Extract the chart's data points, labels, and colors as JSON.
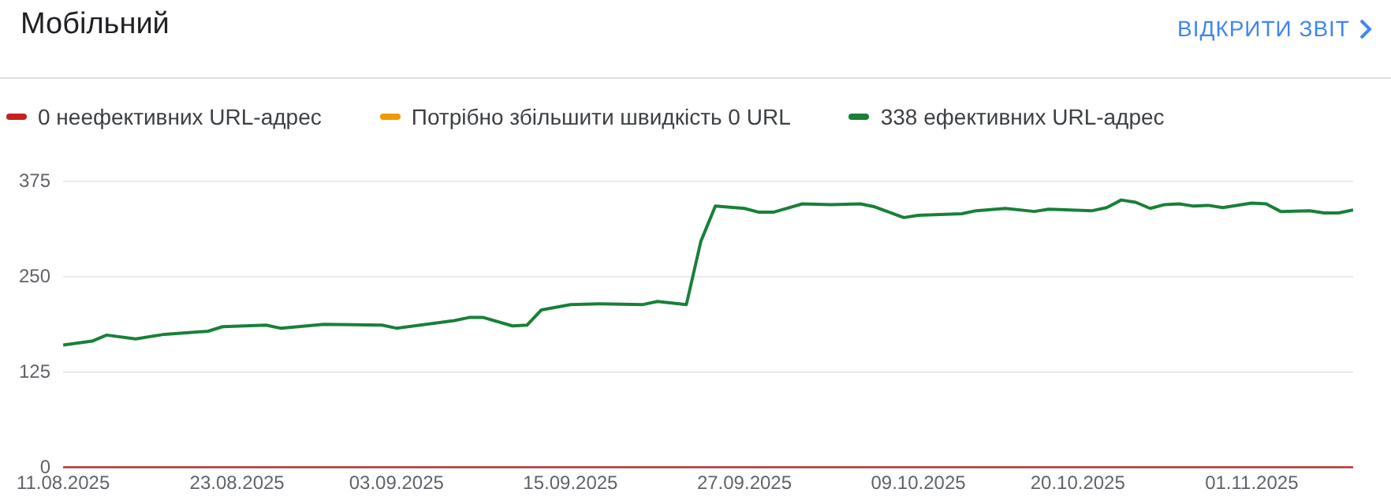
{
  "chart_data": {
    "type": "line",
    "title": "Мобільний",
    "annotations": [
      "ВІДКРИТИ ЗВІТ"
    ],
    "x": [
      "2025-08-11",
      "2025-08-13",
      "2025-08-14",
      "2025-08-16",
      "2025-08-18",
      "2025-08-21",
      "2025-08-22",
      "2025-08-25",
      "2025-08-26",
      "2025-08-29",
      "2025-09-02",
      "2025-09-03",
      "2025-09-07",
      "2025-09-08",
      "2025-09-09",
      "2025-09-11",
      "2025-09-12",
      "2025-09-13",
      "2025-09-15",
      "2025-09-17",
      "2025-09-20",
      "2025-09-21",
      "2025-09-23",
      "2025-09-24",
      "2025-09-25",
      "2025-09-27",
      "2025-09-28",
      "2025-09-29",
      "2025-10-01",
      "2025-10-03",
      "2025-10-05",
      "2025-10-06",
      "2025-10-08",
      "2025-10-09",
      "2025-10-12",
      "2025-10-13",
      "2025-10-15",
      "2025-10-17",
      "2025-10-18",
      "2025-10-21",
      "2025-10-22",
      "2025-10-23",
      "2025-10-24",
      "2025-10-25",
      "2025-10-26",
      "2025-10-27",
      "2025-10-28",
      "2025-10-29",
      "2025-10-30",
      "2025-11-01",
      "2025-11-02",
      "2025-11-03",
      "2025-11-05",
      "2025-11-06",
      "2025-11-07",
      "2025-11-08"
    ],
    "series": [
      {
        "name": "0 неефективних URL-адрес",
        "color": "#c5221f",
        "x": [
          "2025-08-11",
          "2025-11-08"
        ],
        "values": [
          0,
          0
        ]
      },
      {
        "name": "Потрібно збільшити швидкість 0 URL",
        "color": "#f29900",
        "values": [
          null,
          null,
          null,
          null,
          null,
          null,
          null,
          null,
          null,
          null,
          null,
          null,
          null,
          null,
          null,
          null,
          null,
          null,
          null,
          null,
          null,
          null,
          null,
          null,
          null,
          null,
          null,
          null,
          null,
          null,
          null,
          null,
          null,
          null,
          null,
          null,
          null,
          null,
          null,
          null,
          null,
          null,
          null,
          null,
          null,
          null,
          null,
          null,
          null,
          null,
          null,
          null,
          null,
          null,
          null,
          null
        ]
      },
      {
        "name": "338 ефективних URL-адрес",
        "color": "#188038",
        "values": [
          161,
          166,
          174,
          169,
          175,
          179,
          185,
          187,
          183,
          188,
          187,
          183,
          193,
          197,
          197,
          186,
          187,
          207,
          214,
          215,
          214,
          218,
          214,
          297,
          343,
          340,
          335,
          335,
          346,
          345,
          346,
          342,
          328,
          331,
          333,
          337,
          340,
          336,
          339,
          337,
          341,
          351,
          348,
          340,
          345,
          346,
          343,
          344,
          341,
          347,
          346,
          336,
          337,
          334,
          334,
          338
        ]
      }
    ],
    "xlim": [
      "2025-08-11",
      "2025-11-08"
    ],
    "xticks": [
      {
        "value": "2025-08-11",
        "label": "11.08.2025"
      },
      {
        "value": "2025-08-23",
        "label": "23.08.2025"
      },
      {
        "value": "2025-09-03",
        "label": "03.09.2025"
      },
      {
        "value": "2025-09-15",
        "label": "15.09.2025"
      },
      {
        "value": "2025-09-27",
        "label": "27.09.2025"
      },
      {
        "value": "2025-10-09",
        "label": "09.10.2025"
      },
      {
        "value": "2025-10-20",
        "label": "20.10.2025"
      },
      {
        "value": "2025-11-01",
        "label": "01.11.2025"
      }
    ],
    "ylim": [
      0,
      375
    ],
    "yticks": [
      0,
      125,
      250,
      375
    ],
    "grid": "y",
    "legend": "top left",
    "marker": "none",
    "line_style": "solid"
  }
}
